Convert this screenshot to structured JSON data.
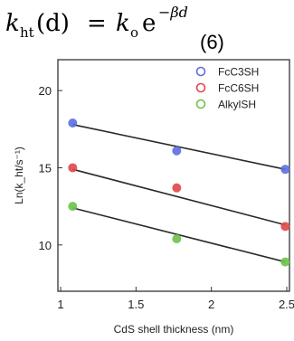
{
  "equation": {
    "lhs": "k",
    "lhs_sub": "ht",
    "lhs_arg": "(d)",
    "equals": "=",
    "rhs_k": "k",
    "rhs_sub": "o",
    "rhs_e": "e",
    "exponent": "−βd",
    "number": "(6)"
  },
  "chart_data": {
    "type": "scatter",
    "xlabel": "CdS shell thickness (nm)",
    "ylabel": "Ln(k_ht/s⁻¹)",
    "xlim": [
      1,
      2.5
    ],
    "ylim": [
      7,
      22
    ],
    "xticks": [
      "1",
      "1.5",
      "2",
      "2.5"
    ],
    "yticks": [
      "10",
      "15",
      "20"
    ],
    "grid": false,
    "legend_position": "top-right",
    "series": [
      {
        "name": "FcC3SH",
        "color": "#5b6fe0",
        "x": [
          1.08,
          1.77,
          2.49
        ],
        "y": [
          17.9,
          16.1,
          14.9
        ],
        "fit": [
          [
            1.08,
            17.8
          ],
          [
            2.49,
            14.9
          ]
        ]
      },
      {
        "name": "FcC6SH",
        "color": "#e0484a",
        "x": [
          1.08,
          1.77,
          2.49
        ],
        "y": [
          15.0,
          13.7,
          11.2
        ],
        "fit": [
          [
            1.08,
            14.9
          ],
          [
            2.49,
            11.3
          ]
        ]
      },
      {
        "name": "AlkylSH",
        "color": "#6cc34a",
        "x": [
          1.08,
          1.77,
          2.49
        ],
        "y": [
          12.5,
          10.4,
          8.9
        ],
        "fit": [
          [
            1.08,
            12.4
          ],
          [
            2.49,
            8.9
          ]
        ]
      }
    ]
  }
}
